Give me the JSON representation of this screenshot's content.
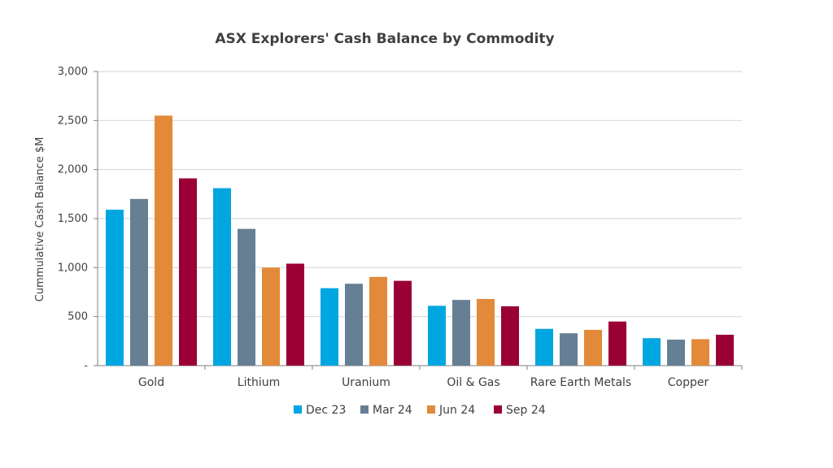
{
  "chart_data": {
    "type": "bar",
    "title": "ASX Explorers' Cash Balance by Commodity",
    "xlabel": "",
    "ylabel": "Cummulative Cash Balance $M",
    "ylim": [
      0,
      3000
    ],
    "yticks": [
      0,
      500,
      1000,
      1500,
      2000,
      2500,
      3000
    ],
    "ytick_labels": [
      "-",
      "500",
      "1,000",
      "1,500",
      "2,000",
      "2,500",
      "3,000"
    ],
    "grid": true,
    "legend_position": "bottom",
    "categories": [
      "Gold",
      "Lithium",
      "Uranium",
      "Oil & Gas",
      "Rare Earth Metals",
      "Copper"
    ],
    "series": [
      {
        "name": "Dec 23",
        "color": "#00A6E0",
        "values": [
          1590,
          1810,
          790,
          610,
          375,
          280
        ]
      },
      {
        "name": "Mar 24",
        "color": "#667F94",
        "values": [
          1700,
          1395,
          835,
          670,
          330,
          265
        ]
      },
      {
        "name": "Jun 24",
        "color": "#E28A39",
        "values": [
          2550,
          1000,
          905,
          680,
          365,
          270
        ]
      },
      {
        "name": "Sep 24",
        "color": "#9A0036",
        "values": [
          1910,
          1040,
          865,
          605,
          450,
          315
        ]
      }
    ]
  }
}
